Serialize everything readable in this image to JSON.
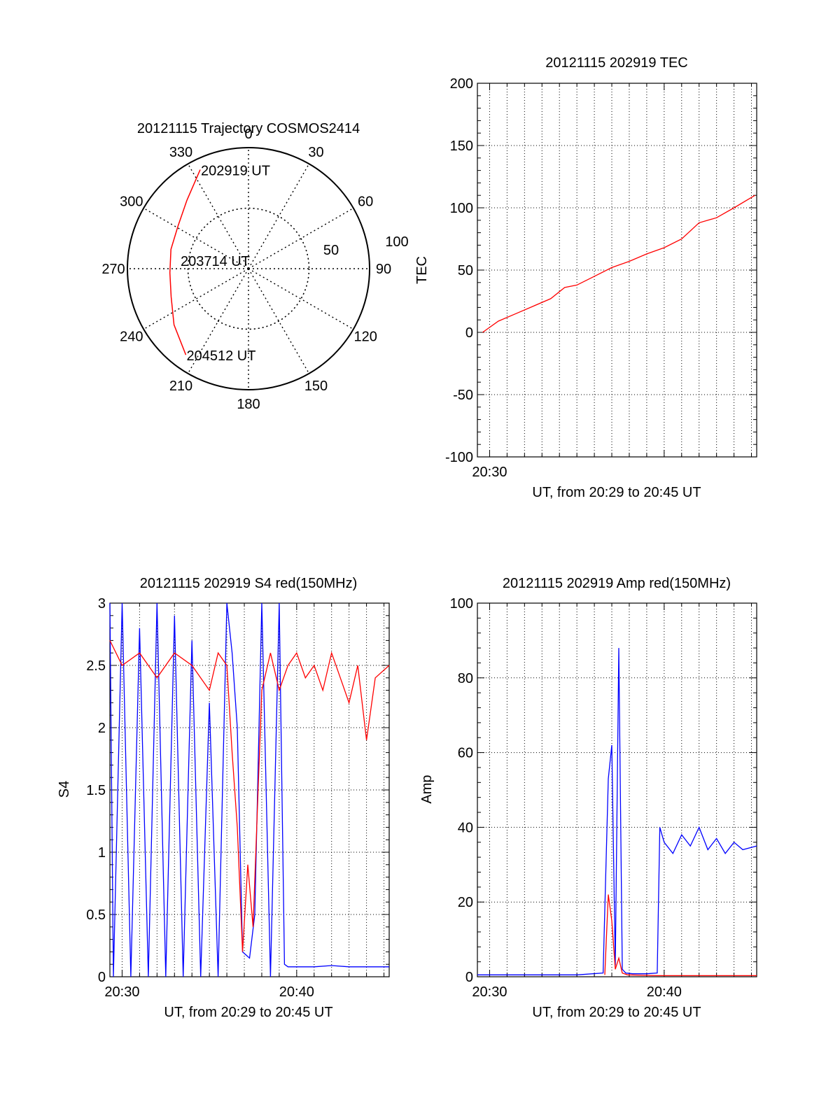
{
  "chart_data": [
    {
      "type": "polar",
      "title": "20121115 Trajectory COSMOS2414",
      "angle_labels": [
        "0",
        "30",
        "60",
        "90",
        "120",
        "150",
        "180",
        "210",
        "240",
        "270",
        "300",
        "330"
      ],
      "radial_labels": [
        "50",
        "100"
      ],
      "rlim": [
        0,
        100
      ],
      "grid": true,
      "series": [
        {
          "color": "#ff0000",
          "points": [
            {
              "az": 334,
              "r": 91
            },
            {
              "az": 318,
              "r": 76
            },
            {
              "az": 301,
              "r": 68
            },
            {
              "az": 284,
              "r": 66
            },
            {
              "az": 267,
              "r": 65
            },
            {
              "az": 250,
              "r": 68
            },
            {
              "az": 233,
              "r": 77
            },
            {
              "az": 216,
              "r": 88
            }
          ]
        }
      ],
      "annotations": [
        {
          "text": "202919 UT",
          "az": 334,
          "r": 91
        },
        {
          "text": "203714 UT",
          "az": 0,
          "r": 0
        },
        {
          "text": "204512 UT",
          "az": 216,
          "r": 88
        }
      ]
    },
    {
      "type": "line",
      "title": "20121115 202919 TEC",
      "xlabel": "UT, from 20:29 to 20:45 UT",
      "ylabel": "TEC",
      "xlim": [
        29.3,
        45.3
      ],
      "ylim": [
        -100,
        200
      ],
      "x_ticks": [
        {
          "x": 30,
          "label": "20:30"
        }
      ],
      "y_ticks": [
        -100,
        -50,
        0,
        50,
        100,
        150,
        200
      ],
      "grid": true,
      "series": [
        {
          "color": "#ff0000",
          "x": [
            29.6,
            30.5,
            31.5,
            32.5,
            33.5,
            34.3,
            35.0,
            36.0,
            37.0,
            38.0,
            39.0,
            40.0,
            41.0,
            42.0,
            43.0,
            44.0,
            45.2
          ],
          "y": [
            0,
            9,
            15,
            21,
            27,
            36,
            38,
            45,
            52,
            57,
            63,
            68,
            75,
            88,
            92,
            100,
            110
          ]
        }
      ]
    },
    {
      "type": "line",
      "title": "20121115 202919 S4 red(150MHz)",
      "xlabel": "UT, from 20:29 to 20:45 UT",
      "ylabel": "S4",
      "xlim": [
        29.3,
        45.3
      ],
      "ylim": [
        0,
        3
      ],
      "x_ticks": [
        {
          "x": 30,
          "label": "20:30"
        },
        {
          "x": 40,
          "label": "20:40"
        }
      ],
      "y_ticks": [
        0,
        0.5,
        1,
        1.5,
        2,
        2.5,
        3
      ],
      "grid": true,
      "series": [
        {
          "color": "#0000ff",
          "x": [
            29.3,
            29.5,
            30.0,
            30.5,
            31.0,
            31.5,
            32.0,
            32.5,
            33.0,
            33.5,
            34.0,
            34.5,
            35.0,
            35.5,
            36.0,
            36.3,
            36.6,
            36.9,
            37.3,
            37.6,
            38.0,
            38.5,
            39.0,
            39.3,
            39.5,
            40.0,
            41.0,
            42.0,
            43.0,
            44.0,
            45.3
          ],
          "y": [
            3,
            0,
            3,
            0,
            2.8,
            0,
            3,
            0,
            2.9,
            0,
            2.7,
            0,
            2.2,
            0,
            3,
            2.6,
            2.0,
            0.2,
            0.15,
            0.5,
            3,
            0,
            3,
            0.1,
            0.08,
            0.08,
            0.08,
            0.09,
            0.08,
            0.08,
            0.08
          ]
        },
        {
          "color": "#ff0000",
          "x": [
            29.3,
            30.0,
            31.0,
            32.0,
            33.0,
            34.0,
            35.0,
            35.5,
            36.0,
            36.3,
            36.6,
            36.9,
            37.2,
            37.5,
            38.0,
            38.5,
            39.0,
            39.5,
            40.0,
            40.5,
            41.0,
            41.5,
            42.0,
            42.5,
            43.0,
            43.5,
            44.0,
            44.5,
            45.3
          ],
          "y": [
            2.7,
            2.5,
            2.6,
            2.4,
            2.6,
            2.5,
            2.3,
            2.6,
            2.5,
            1.8,
            1.2,
            0.2,
            0.9,
            0.4,
            2.3,
            2.6,
            2.3,
            2.5,
            2.6,
            2.4,
            2.5,
            2.3,
            2.6,
            2.4,
            2.2,
            2.5,
            1.9,
            2.4,
            2.5
          ]
        }
      ]
    },
    {
      "type": "line",
      "title": "20121115 202919 Amp red(150MHz)",
      "xlabel": "UT, from 20:29 to 20:45 UT",
      "ylabel": "Amp",
      "xlim": [
        29.3,
        45.3
      ],
      "ylim": [
        0,
        100
      ],
      "x_ticks": [
        {
          "x": 30,
          "label": "20:30"
        },
        {
          "x": 40,
          "label": "20:40"
        }
      ],
      "y_ticks": [
        0,
        20,
        40,
        60,
        80,
        100
      ],
      "grid": true,
      "series": [
        {
          "color": "#0000ff",
          "x": [
            29.3,
            31.0,
            33.0,
            35.0,
            36.5,
            36.8,
            37.0,
            37.2,
            37.4,
            37.6,
            37.8,
            38.2,
            39.0,
            39.6,
            39.75,
            40.0,
            40.5,
            41.0,
            41.5,
            42.0,
            42.5,
            43.0,
            43.5,
            44.0,
            44.5,
            45.3
          ],
          "y": [
            0.5,
            0.5,
            0.5,
            0.5,
            1,
            53,
            62,
            3,
            88,
            2,
            1,
            0.8,
            0.8,
            1,
            40,
            36,
            33,
            38,
            35,
            40,
            34,
            37,
            33,
            36,
            34,
            35
          ]
        },
        {
          "color": "#ff0000",
          "x": [
            36.6,
            36.8,
            37.0,
            37.2,
            37.4,
            37.6,
            37.9,
            39.6,
            41.0,
            43.0,
            45.3
          ],
          "y": [
            0.5,
            22,
            15,
            2,
            5,
            1,
            0.5,
            0.3,
            0.3,
            0.3,
            0.3
          ]
        }
      ]
    }
  ]
}
